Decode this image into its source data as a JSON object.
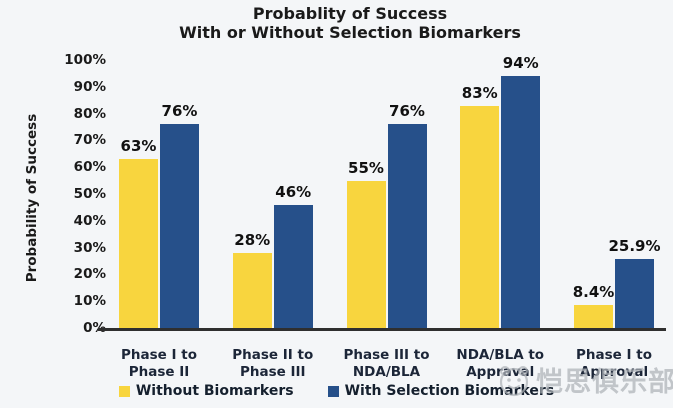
{
  "title": {
    "line1": "Probablity of Success",
    "line2": "With or Without Selection Biomarkers"
  },
  "chart_data": {
    "type": "bar",
    "title": "Probablity of Success With or Without Selection Biomarkers",
    "xlabel": "",
    "ylabel": "Probability of Success",
    "ylim": [
      0,
      100
    ],
    "y_tick_labels": [
      "0%",
      "10%",
      "20%",
      "30%",
      "40%",
      "50%",
      "60%",
      "70%",
      "80%",
      "90%",
      "100%"
    ],
    "grid": false,
    "legend_position": "bottom",
    "categories": [
      {
        "line1": "Phase I to",
        "line2": "Phase II"
      },
      {
        "line1": "Phase II to",
        "line2": "Phase III"
      },
      {
        "line1": "Phase III to",
        "line2": "NDA/BLA"
      },
      {
        "line1": "NDA/BLA to",
        "line2": "Appraval"
      },
      {
        "line1": "Phase I to",
        "line2": "Approval"
      }
    ],
    "series": [
      {
        "name": "Without Biomarkers",
        "color": "#F8D53E",
        "values": [
          63,
          28,
          55,
          83,
          8.4
        ],
        "labels": [
          "63%",
          "28%",
          "55%",
          "83%",
          "8.4%"
        ]
      },
      {
        "name": "With Selection Biomarkers",
        "color": "#26508A",
        "values": [
          76,
          46,
          76,
          94,
          25.9
        ],
        "labels": [
          "76%",
          "46%",
          "76%",
          "94%",
          "25.9%"
        ]
      }
    ]
  },
  "colors": {
    "background": "#f4f6f8",
    "axis": "#2f2f2f",
    "text": "#1a1a1a",
    "watermark": "#aeb3b8"
  },
  "watermark": {
    "text": "恺思俱乐部",
    "logo": "club-face-logo"
  }
}
